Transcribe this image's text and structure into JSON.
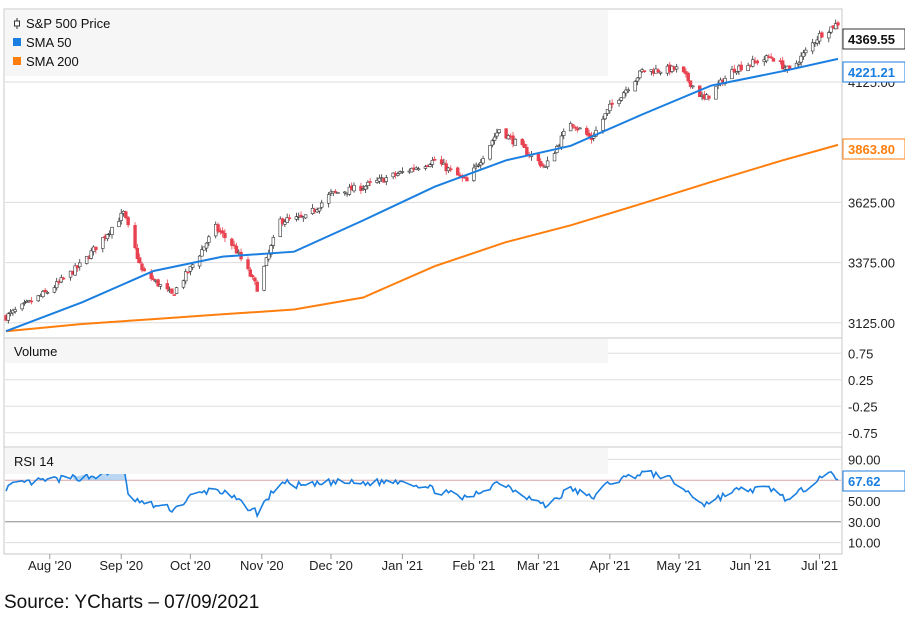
{
  "source": "Source: YCharts – 07/09/2021",
  "colors": {
    "sma50": "#1a7fe0",
    "sma200": "#ff7f0e",
    "rsi": "#1a7fe0",
    "up_candle": "#ffffff",
    "down_candle": "#e8414f",
    "grid": "#dddddd",
    "overbought_fill": "#a8cdf0"
  },
  "chart_data": [
    {
      "type": "line",
      "panel": "price",
      "series": [
        {
          "name": "S&P 500 Price",
          "style": "candlestick",
          "current": "4369.55",
          "x": [
            "2020-07-13",
            "2020-08-01",
            "2020-08-15",
            "2020-09-02",
            "2020-09-10",
            "2020-09-23",
            "2020-10-01",
            "2020-10-12",
            "2020-10-20",
            "2020-10-30",
            "2020-11-09",
            "2020-11-20",
            "2020-12-01",
            "2020-12-15",
            "2021-01-01",
            "2021-01-15",
            "2021-01-29",
            "2021-02-12",
            "2021-03-04",
            "2021-03-15",
            "2021-03-24",
            "2021-04-01",
            "2021-04-15",
            "2021-05-01",
            "2021-05-12",
            "2021-05-25",
            "2021-06-10",
            "2021-06-18",
            "2021-07-01",
            "2021-07-09"
          ],
          "values": [
            3150,
            3260,
            3370,
            3580,
            3340,
            3240,
            3350,
            3520,
            3440,
            3270,
            3550,
            3560,
            3660,
            3690,
            3750,
            3800,
            3710,
            3930,
            3770,
            3960,
            3890,
            4020,
            4170,
            4180,
            4050,
            4180,
            4230,
            4170,
            4320,
            4369.55
          ]
        },
        {
          "name": "SMA 50",
          "current": "4221.21",
          "x": [
            "2020-07-13",
            "2020-08-15",
            "2020-09-15",
            "2020-10-15",
            "2020-11-15",
            "2020-12-15",
            "2021-01-15",
            "2021-02-15",
            "2021-03-15",
            "2021-04-15",
            "2021-05-15",
            "2021-06-15",
            "2021-07-09"
          ],
          "values": [
            3090,
            3210,
            3340,
            3400,
            3420,
            3550,
            3690,
            3800,
            3860,
            3990,
            4110,
            4170,
            4221.21
          ]
        },
        {
          "name": "SMA 200",
          "current": "3863.80",
          "x": [
            "2020-07-13",
            "2020-08-15",
            "2020-09-15",
            "2020-10-15",
            "2020-11-15",
            "2020-12-15",
            "2021-01-15",
            "2021-02-15",
            "2021-03-15",
            "2021-04-15",
            "2021-05-15",
            "2021-06-15",
            "2021-07-09"
          ],
          "values": [
            3090,
            3120,
            3140,
            3160,
            3180,
            3230,
            3360,
            3460,
            3530,
            3620,
            3710,
            3800,
            3863.8
          ]
        }
      ],
      "yticks": [
        "4125.00",
        "3625.00",
        "3375.00",
        "3125.00"
      ],
      "ylim": [
        3070,
        4420
      ],
      "xticks": [
        "Aug '20",
        "Sep '20",
        "Oct '20",
        "Nov '20",
        "Dec '20",
        "Jan '21",
        "Feb '21",
        "Mar '21",
        "Apr '21",
        "May '21",
        "Jun '21",
        "Jul '21"
      ],
      "xtick_dates": [
        "2020-08-01",
        "2020-09-01",
        "2020-10-01",
        "2020-11-01",
        "2020-12-01",
        "2021-01-01",
        "2021-02-01",
        "2021-03-01",
        "2021-04-01",
        "2021-05-01",
        "2021-06-01",
        "2021-07-01"
      ],
      "xlim": [
        "2020-07-13",
        "2021-07-09"
      ],
      "grid": true,
      "legend_position": "top-left"
    },
    {
      "type": "bar",
      "panel": "volume",
      "title": "Volume",
      "yticks": [
        "0.75",
        "0.25",
        "-0.25",
        "-0.75"
      ],
      "ylim": [
        -1,
        1
      ],
      "values": []
    },
    {
      "type": "line",
      "panel": "rsi",
      "title": "RSI 14",
      "series": [
        {
          "name": "RSI 14",
          "current": "67.62",
          "x": [
            "2020-07-13",
            "2020-07-20",
            "2020-08-01",
            "2020-08-15",
            "2020-08-25",
            "2020-09-02",
            "2020-09-04",
            "2020-09-10",
            "2020-09-24",
            "2020-10-01",
            "2020-10-12",
            "2020-10-20",
            "2020-10-30",
            "2020-11-09",
            "2020-11-20",
            "2020-12-01",
            "2020-12-15",
            "2021-01-01",
            "2021-01-10",
            "2021-01-29",
            "2021-02-12",
            "2021-03-04",
            "2021-03-15",
            "2021-03-24",
            "2021-04-01",
            "2021-04-15",
            "2021-04-25",
            "2021-05-12",
            "2021-05-25",
            "2021-06-10",
            "2021-06-18",
            "2021-07-01",
            "2021-07-05",
            "2021-07-09"
          ],
          "values": [
            63,
            67,
            70,
            73,
            75,
            82,
            55,
            48,
            42,
            54,
            62,
            52,
            39,
            68,
            64,
            68,
            67,
            70,
            64,
            52,
            69,
            45,
            62,
            53,
            68,
            77,
            74,
            47,
            60,
            62,
            50,
            74,
            78,
            67.62
          ]
        }
      ],
      "yticks": [
        "90.00",
        "70.00",
        "50.00",
        "30.00",
        "10.00"
      ],
      "ylim": [
        0,
        100
      ],
      "reference_lines": [
        70,
        30
      ],
      "grid": true
    }
  ]
}
